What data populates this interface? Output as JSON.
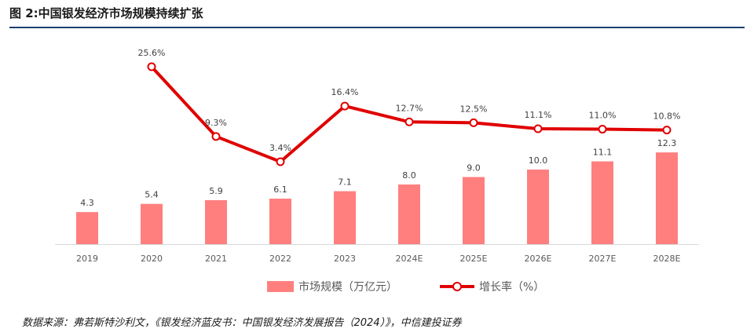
{
  "title": "图 2:中国银发经济市场规模持续扩张",
  "source": "数据来源：弗若斯特沙利文，《银发经济蓝皮书：中国银发经济发展报告（2024）》，中信建投证券",
  "chart_data": {
    "type": "bar+line",
    "categories": [
      "2019",
      "2020",
      "2021",
      "2022",
      "2023",
      "2024E",
      "2025E",
      "2026E",
      "2027E",
      "2028E"
    ],
    "series": [
      {
        "name": "市场规模（万亿元）",
        "type": "bar",
        "values": [
          4.3,
          5.4,
          5.9,
          6.1,
          7.1,
          8.0,
          9.0,
          10.0,
          11.1,
          12.3
        ],
        "labels": [
          "4.3",
          "5.4",
          "5.9",
          "6.1",
          "7.1",
          "8.0",
          "9.0",
          "10.0",
          "11.1",
          "12.3"
        ],
        "color": "#ff7f7f"
      },
      {
        "name": "增长率（%）",
        "type": "line",
        "values": [
          null,
          25.6,
          9.3,
          3.4,
          16.4,
          12.7,
          12.5,
          11.1,
          11.0,
          10.8
        ],
        "labels": [
          "",
          "25.6%",
          "9.3%",
          "3.4%",
          "16.4%",
          "12.7%",
          "12.5%",
          "11.1%",
          "11.0%",
          "10.8%"
        ],
        "color": "#e00000"
      }
    ],
    "legend_position": "bottom",
    "grid": false
  }
}
